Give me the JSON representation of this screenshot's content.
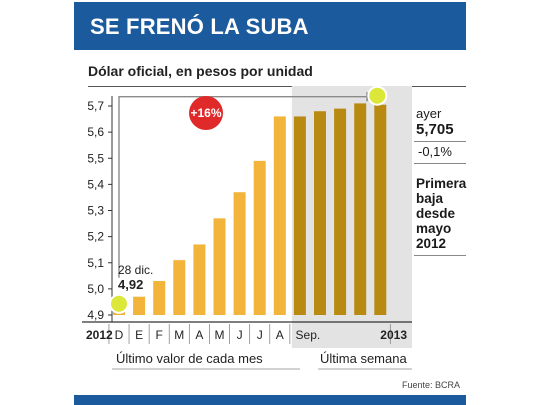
{
  "header": {
    "title": "SE FRENÓ LA SUBA"
  },
  "chart_data": {
    "type": "bar",
    "title": "Dólar oficial, en pesos por unidad",
    "ylim": [
      4.9,
      5.7
    ],
    "yticks": [
      "5,7",
      "5,6",
      "5,5",
      "5,4",
      "5,3",
      "5,2",
      "5,1",
      "5,0",
      "4,9"
    ],
    "ytick_values": [
      5.7,
      5.6,
      5.5,
      5.4,
      5.3,
      5.2,
      5.1,
      5.0,
      4.9
    ],
    "categories": [
      "D",
      "E",
      "F",
      "M",
      "A",
      "M",
      "J",
      "J",
      "A",
      "Sep.",
      "",
      "",
      "",
      ""
    ],
    "values": [
      4.92,
      4.97,
      5.03,
      5.11,
      5.17,
      5.27,
      5.37,
      5.49,
      5.66,
      5.66,
      5.68,
      5.69,
      5.71,
      5.705
    ],
    "year_start": "2012",
    "year_end": "2013",
    "start_annotation": {
      "label": "28 dic.",
      "value": "4,92"
    },
    "change_badge": "+16%",
    "group_labels": [
      "Último valor de cada mes",
      "Última semana"
    ],
    "colors": {
      "monthly": "#f2b43a",
      "weekly": "#b88a12",
      "weekly_bg": "#e3e3e3",
      "marker": "#dbe83a"
    }
  },
  "side_panel": {
    "ayer_label": "ayer",
    "ayer_value": "5,705",
    "change": "-0,1%",
    "note": "Primera baja desde mayo 2012"
  },
  "source": "Fuente: BCRA"
}
